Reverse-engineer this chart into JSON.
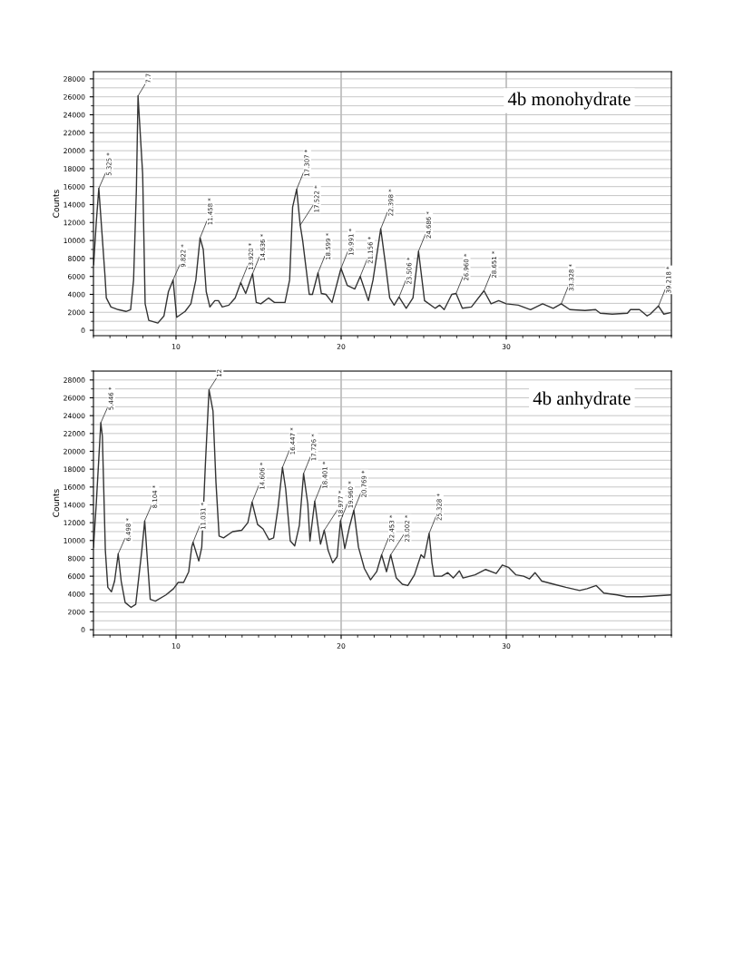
{
  "chart_data": [
    {
      "type": "line",
      "title": "4b monohydrate",
      "ylabel": "Counts",
      "xlim": [
        5,
        40
      ],
      "ylim": [
        -600,
        28800
      ],
      "xticks": [
        10,
        20,
        30
      ],
      "yticks": [
        0,
        2000,
        4000,
        6000,
        8000,
        10000,
        12000,
        14000,
        16000,
        18000,
        20000,
        22000,
        24000,
        26000,
        28000
      ],
      "grid": true,
      "series": [
        {
          "color": "#333333",
          "x": [
            5.01,
            5.17,
            5.325,
            5.69,
            5.78,
            6.06,
            6.5,
            6.97,
            7.25,
            7.43,
            7.6,
            7.7,
            7.98,
            8.13,
            8.35,
            8.9,
            9.27,
            9.54,
            9.822,
            10.04,
            10.55,
            10.9,
            11.2,
            11.458,
            11.65,
            11.83,
            12.05,
            12.35,
            12.57,
            12.8,
            13.2,
            13.58,
            13.92,
            14.22,
            14.636,
            14.86,
            15.14,
            15.6,
            15.96,
            16.6,
            16.88,
            17.06,
            17.307,
            17.522,
            17.67,
            17.85,
            18.07,
            18.26,
            18.599,
            18.8,
            19.08,
            19.45,
            19.991,
            20.37,
            20.83,
            21.156,
            21.65,
            21.93,
            22.398,
            22.66,
            22.94,
            23.21,
            23.506,
            23.94,
            24.35,
            24.686,
            25.05,
            25.69,
            25.96,
            26.24,
            26.7,
            26.96,
            27.34,
            27.89,
            28.651,
            29.08,
            29.54,
            30.0,
            30.73,
            31.47,
            32.2,
            32.84,
            33.328,
            33.85,
            34.77,
            35.41,
            35.69,
            36.42,
            37.34,
            37.52,
            38.07,
            38.53,
            38.72,
            39.218,
            39.54,
            39.91
          ],
          "values": [
            7300,
            12000,
            15800,
            6300,
            3600,
            2600,
            2300,
            2100,
            2300,
            5600,
            15700,
            26100,
            17400,
            2950,
            1100,
            800,
            1600,
            4300,
            5600,
            1450,
            2100,
            2950,
            5600,
            10300,
            9000,
            4300,
            2600,
            3300,
            3300,
            2600,
            2800,
            3600,
            5300,
            4100,
            6300,
            3100,
            2950,
            3600,
            3100,
            3100,
            5600,
            13700,
            15700,
            11700,
            10000,
            7300,
            4000,
            4000,
            6400,
            4100,
            4000,
            3100,
            6900,
            5000,
            4600,
            6000,
            3300,
            5600,
            11300,
            7700,
            3600,
            2800,
            3700,
            2450,
            3600,
            8800,
            3300,
            2450,
            2800,
            2300,
            4000,
            4100,
            2450,
            2600,
            4400,
            2950,
            3300,
            2950,
            2800,
            2300,
            2950,
            2450,
            2950,
            2300,
            2200,
            2300,
            1900,
            1800,
            1900,
            2300,
            2300,
            1600,
            1800,
            2700,
            1800,
            1950
          ]
        }
      ],
      "annotations": [
        {
          "text": "5.325 *",
          "x": 5.325,
          "y": 15800
        },
        {
          "text": "7.7",
          "x": 7.7,
          "y": 26100
        },
        {
          "text": "9.822 *",
          "x": 9.822,
          "y": 5600
        },
        {
          "text": "11.458 *",
          "x": 11.458,
          "y": 10300
        },
        {
          "text": "13.920 *",
          "x": 13.92,
          "y": 5300
        },
        {
          "text": "14.636 *",
          "x": 14.636,
          "y": 6300
        },
        {
          "text": "17.307 *",
          "x": 17.307,
          "y": 15700
        },
        {
          "text": "17.522 *",
          "x": 17.522,
          "y": 11700
        },
        {
          "text": "18.599 *",
          "x": 18.599,
          "y": 6400
        },
        {
          "text": "19.991 *",
          "x": 19.991,
          "y": 6900
        },
        {
          "text": "21.156 *",
          "x": 21.156,
          "y": 6000
        },
        {
          "text": "22.398 *",
          "x": 22.398,
          "y": 11300
        },
        {
          "text": "23.506 *",
          "x": 23.506,
          "y": 3700
        },
        {
          "text": "24.686 *",
          "x": 24.686,
          "y": 8800
        },
        {
          "text": "26.960 *",
          "x": 26.96,
          "y": 4100
        },
        {
          "text": "28.651 *",
          "x": 28.651,
          "y": 4400
        },
        {
          "text": "33.328 *",
          "x": 33.328,
          "y": 2950
        },
        {
          "text": "39.218 *",
          "x": 39.218,
          "y": 2700
        }
      ]
    },
    {
      "type": "line",
      "title": "4b anhydrate",
      "ylabel": "Counts",
      "xlim": [
        5,
        40
      ],
      "ylim": [
        -600,
        29000
      ],
      "xticks": [
        10,
        20,
        30
      ],
      "yticks": [
        0,
        2000,
        4000,
        6000,
        8000,
        10000,
        12000,
        14000,
        16000,
        18000,
        20000,
        22000,
        24000,
        26000,
        28000
      ],
      "grid": true,
      "series": [
        {
          "color": "#333333",
          "x": [
            5.0,
            5.17,
            5.446,
            5.54,
            5.72,
            5.87,
            6.09,
            6.28,
            6.498,
            6.68,
            6.92,
            7.28,
            7.56,
            7.93,
            8.104,
            8.29,
            8.44,
            8.75,
            9.39,
            9.85,
            10.13,
            10.46,
            10.77,
            10.95,
            11.031,
            11.38,
            11.56,
            11.78,
            12.0,
            12.24,
            12.42,
            12.61,
            12.88,
            13.43,
            13.98,
            14.35,
            14.606,
            14.94,
            15.27,
            15.63,
            15.91,
            16.18,
            16.447,
            16.64,
            16.92,
            17.19,
            17.47,
            17.726,
            17.98,
            18.11,
            18.401,
            18.57,
            18.75,
            18.977,
            19.21,
            19.49,
            19.76,
            19.96,
            20.22,
            20.5,
            20.769,
            21.05,
            21.41,
            21.78,
            22.15,
            22.453,
            22.75,
            23.002,
            23.34,
            23.71,
            24.04,
            24.44,
            24.84,
            25.03,
            25.328,
            25.5,
            25.63,
            26.09,
            26.46,
            26.79,
            27.16,
            27.38,
            28.11,
            28.75,
            29.39,
            29.76,
            30.13,
            30.59,
            31.05,
            31.41,
            31.74,
            32.15,
            32.88,
            33.61,
            34.44,
            34.9,
            35.45,
            35.91,
            36.73,
            37.28,
            38.2,
            39.12,
            39.94
          ],
          "values": [
            9250,
            14100,
            23200,
            21700,
            8900,
            4750,
            4250,
            5450,
            8500,
            5450,
            3050,
            2500,
            2850,
            8900,
            12200,
            7200,
            3400,
            3200,
            3900,
            4600,
            5300,
            5300,
            6500,
            9250,
            9800,
            7700,
            9250,
            18600,
            26900,
            24500,
            16500,
            10500,
            10300,
            11000,
            11150,
            12000,
            14300,
            11800,
            11300,
            10100,
            10300,
            13700,
            18200,
            15800,
            9950,
            9400,
            11700,
            17500,
            14100,
            9950,
            14400,
            12000,
            9600,
            11150,
            8900,
            7500,
            8200,
            12200,
            9100,
            11500,
            13400,
            9250,
            6850,
            5600,
            6500,
            8400,
            6500,
            8400,
            5800,
            5100,
            4950,
            6150,
            8400,
            8050,
            10800,
            7500,
            6000,
            6000,
            6400,
            5800,
            6600,
            5800,
            6150,
            6750,
            6300,
            7250,
            7000,
            6150,
            6000,
            5700,
            6400,
            5450,
            5100,
            4750,
            4400,
            4600,
            4950,
            4100,
            3900,
            3700,
            3700,
            3800,
            3900
          ]
        }
      ],
      "annotations": [
        {
          "text": "5.446 *",
          "x": 5.446,
          "y": 23200
        },
        {
          "text": "6.498 *",
          "x": 6.498,
          "y": 8500
        },
        {
          "text": "8.104 *",
          "x": 8.104,
          "y": 12200
        },
        {
          "text": "11.031 *",
          "x": 11.031,
          "y": 9800
        },
        {
          "text": "12",
          "x": 12.0,
          "y": 26900
        },
        {
          "text": "14.606 *",
          "x": 14.606,
          "y": 14300
        },
        {
          "text": "16.447 *",
          "x": 16.447,
          "y": 18200
        },
        {
          "text": "17.726 *",
          "x": 17.726,
          "y": 17500
        },
        {
          "text": "18.401 *",
          "x": 18.401,
          "y": 14400
        },
        {
          "text": "18.977 *",
          "x": 18.977,
          "y": 11150
        },
        {
          "text": "19.960 *",
          "x": 19.96,
          "y": 12200
        },
        {
          "text": "20.769 *",
          "x": 20.769,
          "y": 13400
        },
        {
          "text": "22.453 *",
          "x": 22.453,
          "y": 8400
        },
        {
          "text": "23.002 *",
          "x": 23.002,
          "y": 8400
        },
        {
          "text": "25.328 *",
          "x": 25.328,
          "y": 10800
        }
      ]
    }
  ]
}
